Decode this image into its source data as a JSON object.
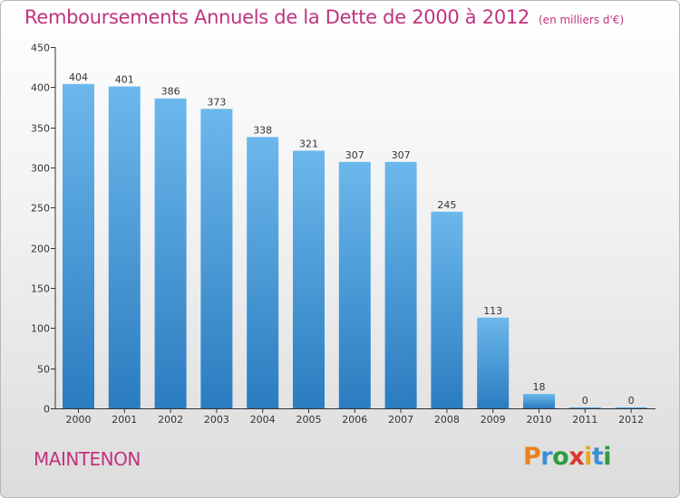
{
  "chart_data": {
    "type": "bar",
    "title": "Remboursements Annuels de la Dette de 2000 à 2012",
    "unit": "(en milliers d'€)",
    "categories": [
      "2000",
      "2001",
      "2002",
      "2003",
      "2004",
      "2005",
      "2006",
      "2007",
      "2008",
      "2009",
      "2010",
      "2011",
      "2012"
    ],
    "values": [
      404,
      401,
      386,
      373,
      338,
      321,
      307,
      307,
      245,
      113,
      18,
      0,
      0
    ],
    "ylim": [
      0,
      450
    ],
    "yticks": [
      0,
      50,
      100,
      150,
      200,
      250,
      300,
      350,
      400,
      450
    ],
    "xlabel": "",
    "ylabel": "",
    "grid": false
  },
  "footer": {
    "city": "MAINTENON",
    "logo_letters": [
      "P",
      "r",
      "o",
      "x",
      "i",
      "t",
      "i"
    ],
    "logo_colors": [
      "#e8821e",
      "#3b8fd6",
      "#2e9b3e",
      "#d73a2a",
      "#e8a91e",
      "#3b8fd6",
      "#2e9b3e"
    ]
  },
  "colors": {
    "title": "#c0337e",
    "bar_light": "#6cb8ec",
    "bar_dark": "#2b7cc0"
  }
}
